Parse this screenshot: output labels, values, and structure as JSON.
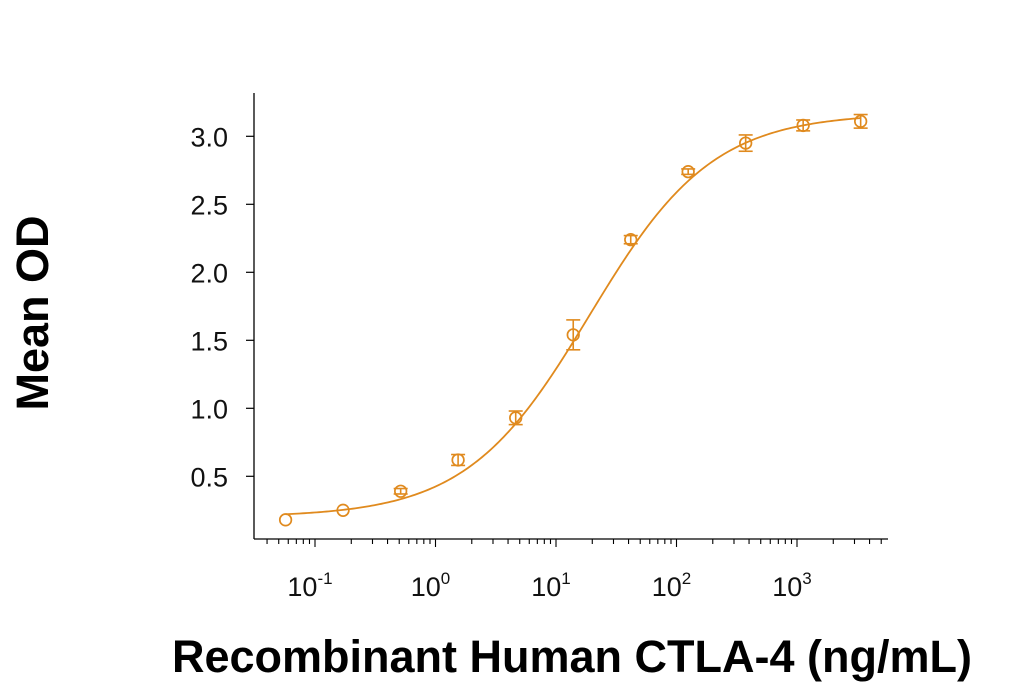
{
  "chart_data": {
    "type": "scatter",
    "title": "",
    "xlabel": "Recombinant Human CTLA-4 (ng/mL)",
    "ylabel": "Mean OD",
    "xscale": "log",
    "xlim": [
      0.04,
      5000
    ],
    "ylim": [
      0.05,
      3.3
    ],
    "x_ticks": [
      {
        "base": "10",
        "exp": "-1",
        "value": 0.1
      },
      {
        "base": "10",
        "exp": "0",
        "value": 1
      },
      {
        "base": "10",
        "exp": "1",
        "value": 10
      },
      {
        "base": "10",
        "exp": "2",
        "value": 100
      },
      {
        "base": "10",
        "exp": "3",
        "value": 1000
      }
    ],
    "y_ticks": [
      {
        "label": "0.5",
        "value": 0.5
      },
      {
        "label": "1.0",
        "value": 1.0
      },
      {
        "label": "1.5",
        "value": 1.5
      },
      {
        "label": "2.0",
        "value": 2.0
      },
      {
        "label": "2.5",
        "value": 2.5
      },
      {
        "label": "3.0",
        "value": 3.0
      }
    ],
    "series": [
      {
        "x": [
          0.057,
          0.171,
          0.514,
          1.54,
          4.63,
          13.9,
          41.7,
          125,
          375,
          1125,
          3375
        ],
        "y": [
          0.18,
          0.25,
          0.39,
          0.62,
          0.93,
          1.54,
          2.24,
          2.74,
          2.95,
          3.08,
          3.11
        ],
        "error": [
          0.0,
          0.0,
          0.02,
          0.04,
          0.05,
          0.11,
          0.03,
          0.02,
          0.06,
          0.04,
          0.05
        ]
      }
    ],
    "fit_curve": {
      "model": "4PL",
      "bottom": 0.2,
      "top": 3.17,
      "ec50": 19,
      "hill": 0.85
    },
    "grid": false,
    "color": "#E08A1E"
  }
}
